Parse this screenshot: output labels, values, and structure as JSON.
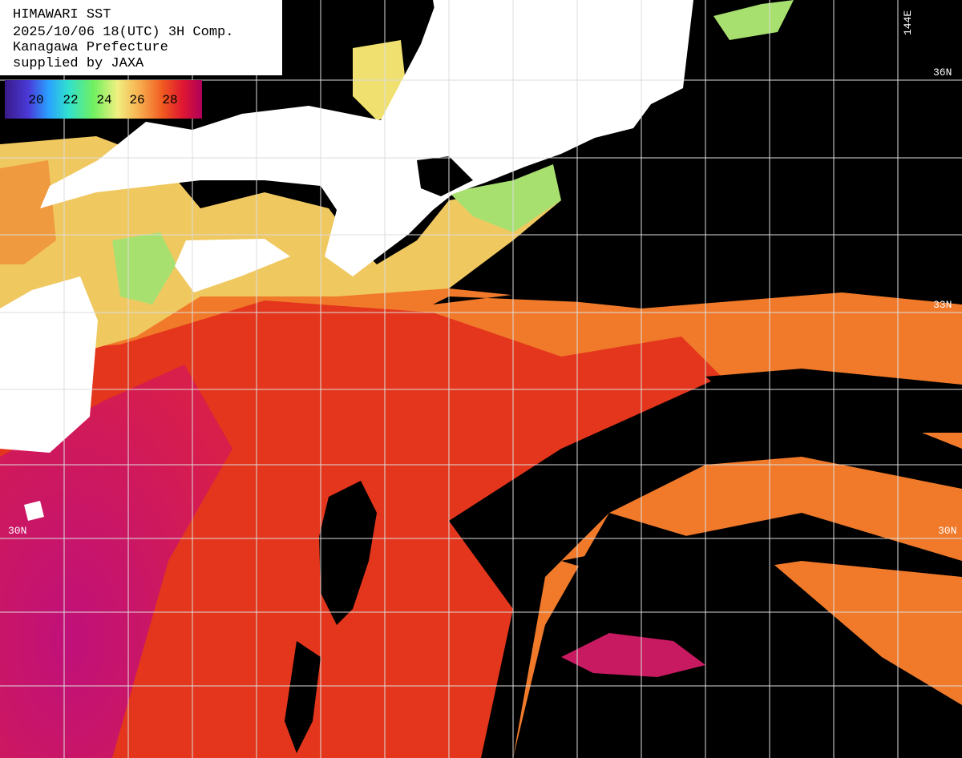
{
  "header": {
    "lines": [
      "HIMAWARI SST",
      "2025/10/06 18(UTC) 3H Comp.",
      "Kanagawa Prefecture",
      "supplied by JAXA"
    ]
  },
  "colorbar": {
    "ticks": [
      20,
      22,
      24,
      26,
      28
    ]
  },
  "grid_labels": [
    "144E",
    "36N",
    "33N",
    "30N",
    "30N"
  ]
}
